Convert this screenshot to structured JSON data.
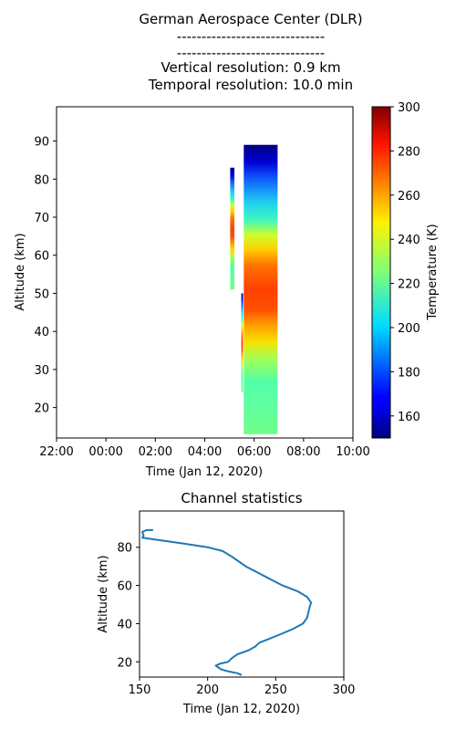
{
  "header": {
    "title_lines": [
      "German Aerospace Center (DLR)",
      "------------------------------",
      "------------------------------",
      "Vertical resolution: 0.9 km",
      "Temporal resolution: 10.0 min"
    ]
  },
  "chart_data": [
    {
      "type": "heatmap",
      "title": "",
      "xlabel": "Time (Jan 12, 2020)",
      "ylabel": "Altitude (km)",
      "x_ticks": [
        "22:00",
        "00:00",
        "02:00",
        "04:00",
        "06:00",
        "08:00",
        "10:00"
      ],
      "x_range_hours": [
        -2,
        10
      ],
      "y_ticks": [
        20,
        30,
        40,
        50,
        60,
        70,
        80,
        90
      ],
      "ylim": [
        12,
        99
      ],
      "colorbar": {
        "label": "Temperature (K)",
        "range": [
          150,
          300
        ],
        "ticks": [
          160,
          180,
          200,
          220,
          240,
          260,
          280,
          300
        ],
        "colormap": "jet"
      },
      "data_blocks": [
        {
          "t_start": 5.03,
          "t_end": 5.2,
          "alt_min": 51,
          "alt_max": 83
        },
        {
          "t_start": 5.48,
          "t_end": 5.55,
          "alt_min": 24,
          "alt_max": 50
        },
        {
          "t_start": 5.58,
          "t_end": 6.95,
          "alt_min": 13,
          "alt_max": 89
        }
      ]
    },
    {
      "type": "line",
      "title": "Channel statistics",
      "xlabel": "Time (Jan 12, 2020)",
      "ylabel": "Altitude (km)",
      "xlim": [
        150,
        300
      ],
      "ylim": [
        12,
        99
      ],
      "x_ticks": [
        150,
        200,
        250,
        300
      ],
      "y_ticks": [
        20,
        40,
        60,
        80
      ],
      "series": [
        {
          "color": "#1f77b4",
          "points": [
            [
              225,
              13
            ],
            [
              222,
              14
            ],
            [
              215,
              15
            ],
            [
              210,
              16
            ],
            [
              208,
              17
            ],
            [
              206,
              18
            ],
            [
              209,
              19
            ],
            [
              215,
              20
            ],
            [
              218,
              22
            ],
            [
              222,
              24
            ],
            [
              230,
              26
            ],
            [
              235,
              28
            ],
            [
              238,
              30
            ],
            [
              245,
              32
            ],
            [
              252,
              34
            ],
            [
              262,
              37
            ],
            [
              270,
              40
            ],
            [
              273,
              43
            ],
            [
              274,
              46
            ],
            [
              275,
              49
            ],
            [
              276,
              51
            ],
            [
              273,
              54
            ],
            [
              266,
              57
            ],
            [
              255,
              60
            ],
            [
              244,
              64
            ],
            [
              236,
              67
            ],
            [
              228,
              70
            ],
            [
              224,
              72
            ],
            [
              218,
              75
            ],
            [
              211,
              78
            ],
            [
              200,
              80
            ],
            [
              182,
              82
            ],
            [
              162,
              84
            ],
            [
              152,
              85
            ],
            [
              153,
              86
            ],
            [
              152,
              88
            ],
            [
              155,
              89
            ],
            [
              160,
              89
            ]
          ]
        }
      ]
    }
  ]
}
